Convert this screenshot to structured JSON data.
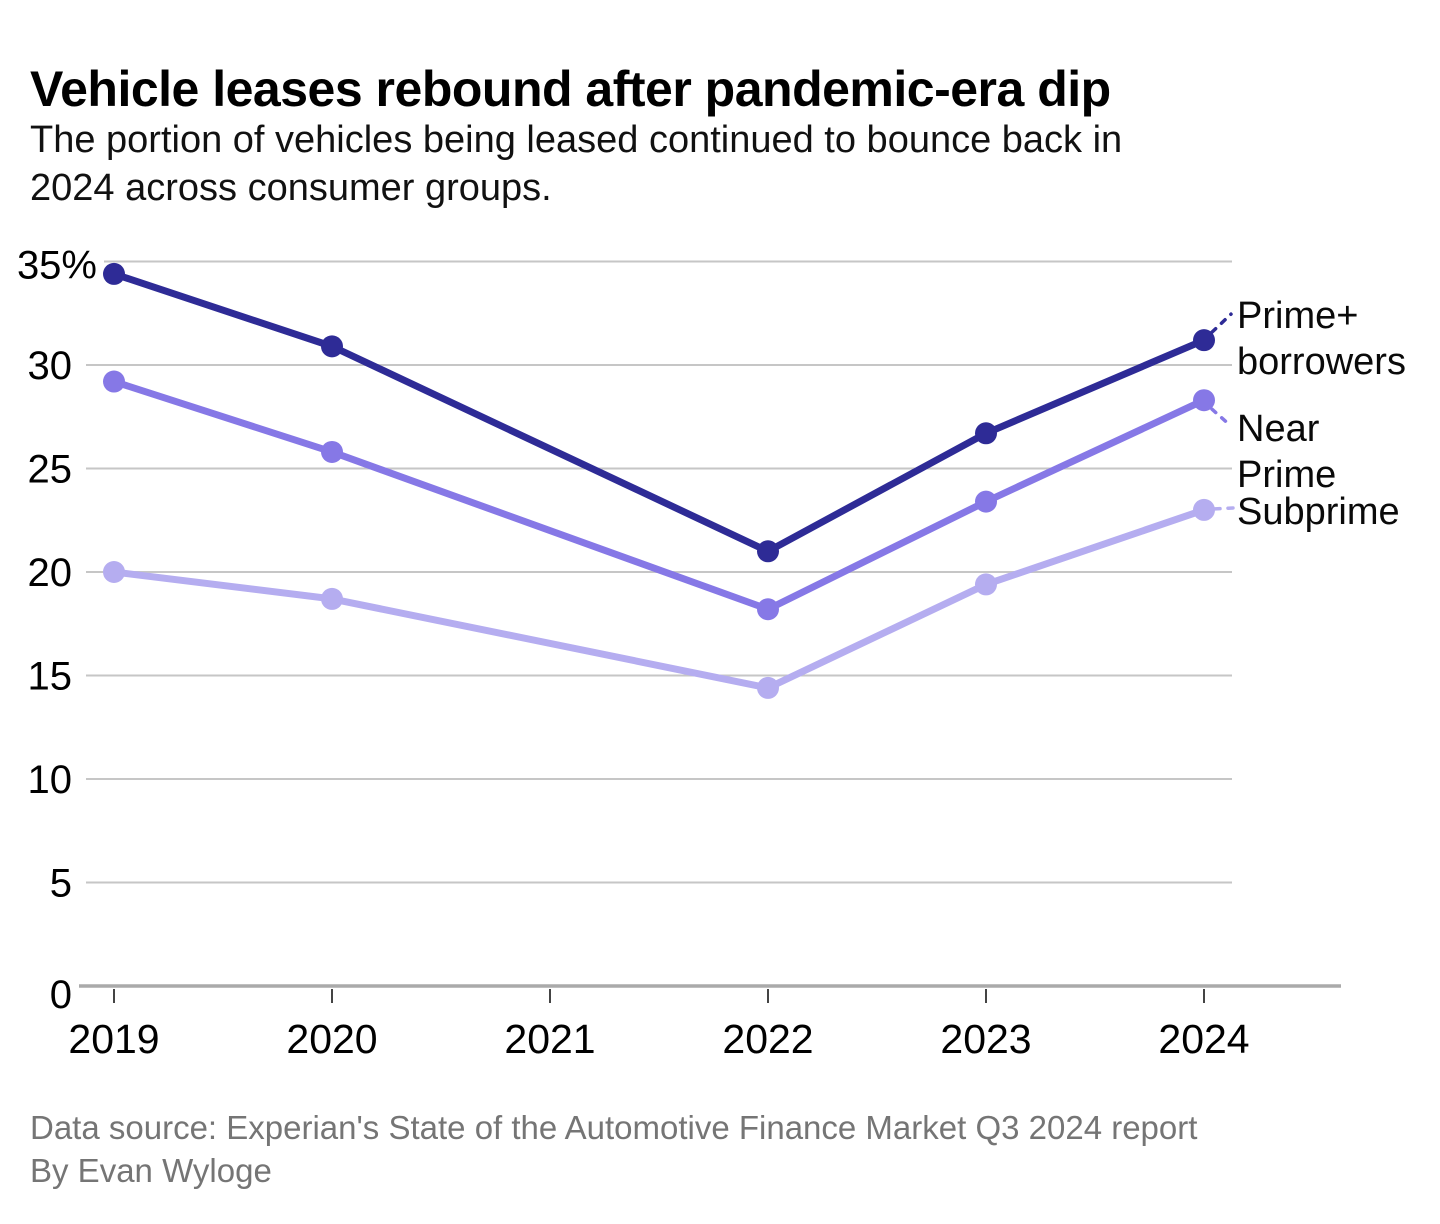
{
  "header": {
    "title": "Vehicle leases rebound after pandemic-era dip",
    "subtitle_lines": [
      "The portion of vehicles being leased continued to bounce back in",
      "2024 across consumer groups."
    ]
  },
  "footer": {
    "lines": [
      "Data source: Experian's State of the Automotive Finance Market Q3 2024 report",
      "By Evan Wyloge"
    ]
  },
  "colors": {
    "prime_plus": "#2e2b96",
    "near_prime": "#8678e6",
    "subprime": "#b5adf0",
    "gridline": "#c6c6c6",
    "axis_line": "#aaaaaa",
    "tick_mark": "#444444",
    "axis_text": "#000000",
    "annotation_text": "#0a0a0a",
    "footer_text": "#757575"
  },
  "chart_data": {
    "type": "line",
    "title": "Vehicle leases rebound after pandemic-era dip",
    "x": [
      2019,
      2020,
      2022,
      2023,
      2024
    ],
    "axis_years": [
      "2019",
      "2020",
      "2021",
      "2022",
      "2023",
      "2024"
    ],
    "y_ticks": [
      0,
      5,
      10,
      15,
      20,
      25,
      30,
      35
    ],
    "y_tick_labels": [
      "0",
      "5",
      "10",
      "15",
      "20",
      "25",
      "30",
      "35%"
    ],
    "ylim": [
      0,
      35
    ],
    "grid": true,
    "legend_position": "right-annotations",
    "series": [
      {
        "name": "Prime+ borrowers",
        "annotation_lines": [
          "Prime+",
          "borrowers"
        ],
        "color": "#2e2b96",
        "values": [
          34.4,
          30.9,
          21.0,
          26.7,
          31.2
        ]
      },
      {
        "name": "Near Prime",
        "annotation_lines": [
          "Near",
          "Prime"
        ],
        "color": "#8678e6",
        "values": [
          29.2,
          25.8,
          18.2,
          23.4,
          28.3
        ]
      },
      {
        "name": "Subprime",
        "annotation_lines": [
          "Subprime"
        ],
        "color": "#b5adf0",
        "values": [
          20.0,
          18.7,
          14.4,
          19.4,
          23.0
        ]
      }
    ]
  }
}
